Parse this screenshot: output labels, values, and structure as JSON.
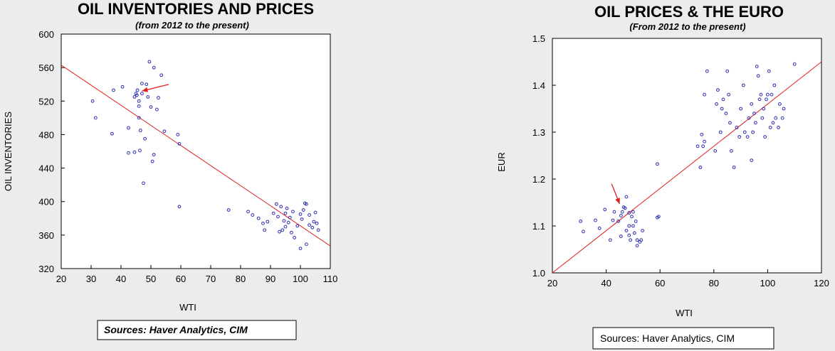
{
  "chart_data": [
    {
      "type": "scatter",
      "title": "OIL INVENTORIES AND PRICES",
      "subtitle": "(from 2012 to the present)",
      "xlabel": "WTI",
      "ylabel": "OIL INVENTORIES",
      "xlim": [
        20,
        110
      ],
      "ylim": [
        320,
        600
      ],
      "xticks": [
        20,
        30,
        40,
        50,
        60,
        70,
        80,
        90,
        100,
        110
      ],
      "yticks": [
        320,
        360,
        400,
        440,
        480,
        520,
        560,
        600
      ],
      "source": "Sources:  Haver Analytics, CIM",
      "point_color": "#2b2bb0",
      "line_color": "#e02020",
      "fit_line": [
        [
          20,
          563
        ],
        [
          110,
          347
        ]
      ],
      "arrow": {
        "from": [
          56,
          540
        ],
        "to": [
          47,
          532
        ]
      },
      "points": [
        [
          30.5,
          520
        ],
        [
          31.5,
          500
        ],
        [
          37,
          481
        ],
        [
          37.5,
          533
        ],
        [
          40.5,
          537
        ],
        [
          42.5,
          488
        ],
        [
          42.5,
          458
        ],
        [
          44.5,
          459
        ],
        [
          44.5,
          525
        ],
        [
          45,
          529
        ],
        [
          45.3,
          527
        ],
        [
          45.5,
          533
        ],
        [
          46,
          500
        ],
        [
          46,
          514
        ],
        [
          46,
          520
        ],
        [
          46.3,
          461
        ],
        [
          46.5,
          485
        ],
        [
          47,
          529
        ],
        [
          47,
          541
        ],
        [
          47.5,
          422
        ],
        [
          48,
          475
        ],
        [
          48.5,
          540
        ],
        [
          49,
          525
        ],
        [
          49.5,
          567
        ],
        [
          50,
          513
        ],
        [
          50.5,
          448
        ],
        [
          51,
          456
        ],
        [
          51,
          560
        ],
        [
          52,
          510
        ],
        [
          52.5,
          524
        ],
        [
          53.5,
          551
        ],
        [
          54.5,
          484
        ],
        [
          59,
          480
        ],
        [
          59.5,
          394
        ],
        [
          59.5,
          469
        ],
        [
          76,
          390
        ],
        [
          82.5,
          388
        ],
        [
          84,
          384
        ],
        [
          86,
          380
        ],
        [
          87.5,
          374
        ],
        [
          88,
          366
        ],
        [
          89,
          376
        ],
        [
          91,
          386
        ],
        [
          92,
          397
        ],
        [
          92.5,
          382
        ],
        [
          93,
          364
        ],
        [
          93.5,
          394
        ],
        [
          94,
          366
        ],
        [
          94.5,
          377
        ],
        [
          95,
          370
        ],
        [
          95,
          386
        ],
        [
          95.5,
          392
        ],
        [
          96,
          375
        ],
        [
          96.5,
          381
        ],
        [
          97,
          363
        ],
        [
          97.5,
          388
        ],
        [
          98,
          357
        ],
        [
          99,
          371
        ],
        [
          100,
          385
        ],
        [
          100,
          344
        ],
        [
          100.5,
          379
        ],
        [
          101,
          390
        ],
        [
          101.5,
          398
        ],
        [
          102,
          397
        ],
        [
          102,
          349
        ],
        [
          103,
          384
        ],
        [
          103,
          372
        ],
        [
          104,
          369
        ],
        [
          104.5,
          376
        ],
        [
          105,
          387
        ],
        [
          105.5,
          374
        ],
        [
          106,
          366
        ]
      ]
    },
    {
      "type": "scatter",
      "title": "OIL PRICES & THE EURO",
      "subtitle": "(From 2012 to the present)",
      "xlabel": "WTI",
      "ylabel": "EUR",
      "xlim": [
        20,
        120
      ],
      "ylim": [
        1.0,
        1.5
      ],
      "xticks": [
        20,
        40,
        60,
        80,
        100,
        120
      ],
      "yticks": [
        1.0,
        1.1,
        1.2,
        1.3,
        1.4,
        1.5
      ],
      "source": "Sources:  Haver Analytics, CIM",
      "point_color": "#2b2bb0",
      "line_color": "#e02020",
      "fit_line": [
        [
          20,
          1.0
        ],
        [
          120,
          1.45
        ]
      ],
      "arrow": {
        "from": [
          42,
          1.19
        ],
        "to": [
          45,
          1.147
        ]
      },
      "points": [
        [
          30.5,
          1.11
        ],
        [
          31.5,
          1.088
        ],
        [
          36,
          1.112
        ],
        [
          37.5,
          1.095
        ],
        [
          39.5,
          1.135
        ],
        [
          41.5,
          1.07
        ],
        [
          42.5,
          1.112
        ],
        [
          43,
          1.13
        ],
        [
          44.5,
          1.11
        ],
        [
          45.5,
          1.122
        ],
        [
          45.5,
          1.078
        ],
        [
          46,
          1.13
        ],
        [
          46.5,
          1.14
        ],
        [
          47,
          1.138
        ],
        [
          47.5,
          1.162
        ],
        [
          47.5,
          1.09
        ],
        [
          48.5,
          1.128
        ],
        [
          48.5,
          1.1
        ],
        [
          48.5,
          1.08
        ],
        [
          49,
          1.07
        ],
        [
          49.5,
          1.12
        ],
        [
          50,
          1.1
        ],
        [
          50,
          1.13
        ],
        [
          50.5,
          1.085
        ],
        [
          51,
          1.11
        ],
        [
          51.5,
          1.07
        ],
        [
          51.5,
          1.058
        ],
        [
          52.5,
          1.066
        ],
        [
          53,
          1.07
        ],
        [
          53.5,
          1.09
        ],
        [
          59,
          1.232
        ],
        [
          59,
          1.118
        ],
        [
          59.5,
          1.12
        ],
        [
          74,
          1.27
        ],
        [
          75,
          1.225
        ],
        [
          75.5,
          1.295
        ],
        [
          76,
          1.27
        ],
        [
          76.5,
          1.28
        ],
        [
          76.5,
          1.38
        ],
        [
          77.5,
          1.43
        ],
        [
          80.5,
          1.26
        ],
        [
          81,
          1.36
        ],
        [
          81.5,
          1.39
        ],
        [
          82.5,
          1.3
        ],
        [
          83,
          1.35
        ],
        [
          83.5,
          1.37
        ],
        [
          84.5,
          1.34
        ],
        [
          85,
          1.43
        ],
        [
          85.5,
          1.38
        ],
        [
          86,
          1.32
        ],
        [
          86.5,
          1.26
        ],
        [
          87.5,
          1.225
        ],
        [
          88.5,
          1.31
        ],
        [
          89.5,
          1.29
        ],
        [
          90,
          1.35
        ],
        [
          91,
          1.4
        ],
        [
          91.5,
          1.3
        ],
        [
          92.5,
          1.29
        ],
        [
          93,
          1.33
        ],
        [
          94,
          1.24
        ],
        [
          94,
          1.36
        ],
        [
          94.5,
          1.3
        ],
        [
          95,
          1.34
        ],
        [
          95.5,
          1.32
        ],
        [
          96,
          1.44
        ],
        [
          96.5,
          1.42
        ],
        [
          97,
          1.37
        ],
        [
          97.5,
          1.38
        ],
        [
          98,
          1.33
        ],
        [
          98.5,
          1.35
        ],
        [
          99,
          1.29
        ],
        [
          99.5,
          1.37
        ],
        [
          100,
          1.38
        ],
        [
          100.5,
          1.43
        ],
        [
          101,
          1.31
        ],
        [
          101.5,
          1.38
        ],
        [
          102,
          1.32
        ],
        [
          102.5,
          1.4
        ],
        [
          103,
          1.33
        ],
        [
          104,
          1.31
        ],
        [
          104.5,
          1.36
        ],
        [
          105.5,
          1.33
        ],
        [
          106,
          1.35
        ],
        [
          110,
          1.445
        ]
      ]
    }
  ]
}
